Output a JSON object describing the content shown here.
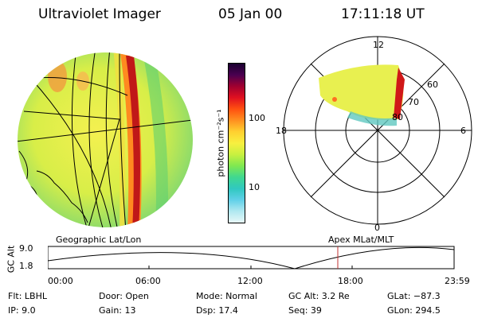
{
  "header": {
    "title": "Ultraviolet Imager",
    "date": "05 Jan 00",
    "time": "17:11:18 UT"
  },
  "colorbar": {
    "label": "photon cm⁻²s⁻¹",
    "ticks": [
      "100",
      "10"
    ],
    "colors": [
      "#1a0030",
      "#4a0050",
      "#a00030",
      "#e01020",
      "#ff5010",
      "#ff9020",
      "#ffd030",
      "#f8f040",
      "#c8f040",
      "#80e850",
      "#40d890",
      "#30c8c0",
      "#60d0e8",
      "#b0e8f0",
      "#e8f8f8"
    ]
  },
  "polar": {
    "mlt_labels": [
      "12",
      "18",
      "6",
      "0"
    ],
    "mlat_labels": [
      "60",
      "70",
      "80"
    ]
  },
  "timeline": {
    "left_title": "Geographic Lat/Lon",
    "right_title": "Apex  MLat/MLT",
    "ylabel": "GC Alt",
    "y_ticks": [
      "9.0",
      "1.8"
    ],
    "x_ticks": [
      "00:00",
      "06:00",
      "12:00",
      "18:00",
      "23:59"
    ],
    "marker_color": "#c03030"
  },
  "footer": {
    "flt": "Flt: LBHL",
    "ip": "IP:  9.0",
    "door": "Door: Open",
    "gain": "Gain: 13",
    "mode": "Mode: Normal",
    "dsp": "Dsp:    17.4",
    "gcalt": "GC Alt: 3.2 Re",
    "seq": "Seq: 39",
    "glat": "GLat: −87.3",
    "glon": "GLon: 294.5"
  }
}
